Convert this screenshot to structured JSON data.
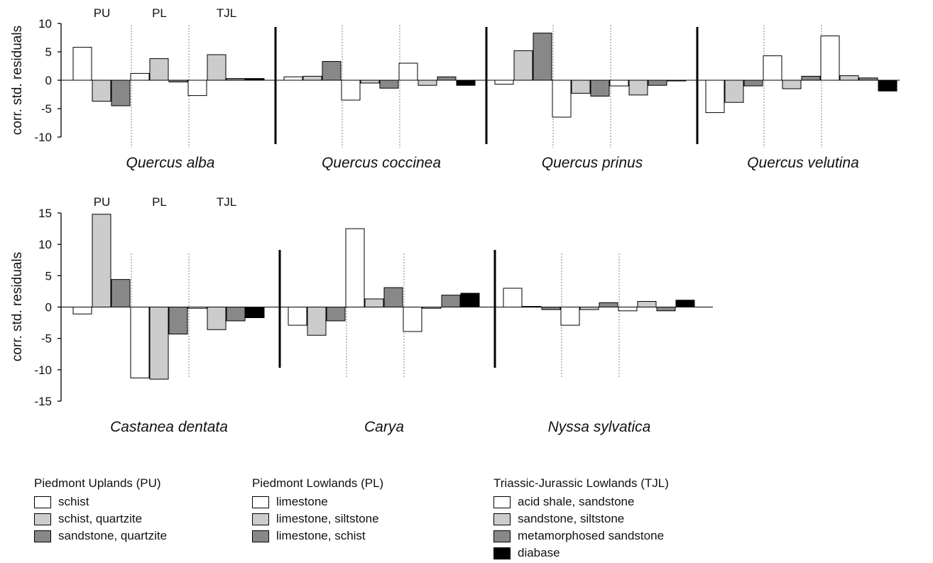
{
  "chart_data": {
    "type": "bar",
    "ylabel": "corr. std. residuals",
    "colors": {
      "white": "#ffffff",
      "light": "#cccccc",
      "mid": "#888888",
      "black": "#000000",
      "axis": "#000000"
    },
    "groups": [
      {
        "label": "PU",
        "bars": [
          {
            "name": "schist",
            "color": "white"
          },
          {
            "name": "schist, quartzite",
            "color": "light"
          },
          {
            "name": "sandstone, quartzite",
            "color": "mid"
          }
        ]
      },
      {
        "label": "PL",
        "bars": [
          {
            "name": "limestone",
            "color": "white"
          },
          {
            "name": "limestone, siltstone",
            "color": "light"
          },
          {
            "name": "limestone, schist",
            "color": "mid"
          }
        ]
      },
      {
        "label": "TJL",
        "bars": [
          {
            "name": "acid shale, sandstone",
            "color": "white"
          },
          {
            "name": "sandstone, siltstone",
            "color": "light"
          },
          {
            "name": "metamorphosed sandstone",
            "color": "mid"
          },
          {
            "name": "diabase",
            "color": "black"
          }
        ]
      }
    ],
    "panels": [
      {
        "yticks": [
          "10",
          "5",
          "0",
          "-5",
          "-10"
        ],
        "ylim": [
          -10,
          10
        ],
        "species": [
          {
            "name": "Quercus alba",
            "values": [
              5.8,
              -3.7,
              -4.5,
              1.2,
              3.8,
              -0.3,
              -2.7,
              4.5,
              0.3,
              0.3
            ]
          },
          {
            "name": "Quercus coccinea",
            "values": [
              0.6,
              0.7,
              3.3,
              -3.5,
              -0.5,
              -1.4,
              3.0,
              -0.9,
              0.6,
              -0.9
            ]
          },
          {
            "name": "Quercus prinus",
            "values": [
              -0.7,
              5.2,
              8.3,
              -6.5,
              -2.3,
              -2.8,
              -1.0,
              -2.6,
              -0.9,
              -0.1
            ]
          },
          {
            "name": "Quercus velutina",
            "values": [
              -5.7,
              -3.9,
              -1.0,
              4.3,
              -1.5,
              0.7,
              7.8,
              0.8,
              0.4,
              -1.9
            ]
          }
        ]
      },
      {
        "yticks": [
          "15",
          "10",
          "5",
          "0",
          "-5",
          "-10",
          "-15"
        ],
        "ylim": [
          -15,
          15
        ],
        "species": [
          {
            "name": "Castanea dentata",
            "values": [
              -1.1,
              14.8,
              4.4,
              -11.3,
              -11.5,
              -4.3,
              -0.2,
              -3.6,
              -2.2,
              -1.7
            ]
          },
          {
            "name": "Carya",
            "values": [
              -2.9,
              -4.5,
              -2.2,
              12.5,
              1.3,
              3.1,
              -3.9,
              -0.2,
              1.9,
              2.2
            ]
          },
          {
            "name": "Nyssa sylvatica",
            "values": [
              3.0,
              0.1,
              -0.4,
              -2.9,
              -0.4,
              0.7,
              -0.6,
              0.9,
              -0.6,
              1.1
            ]
          }
        ]
      }
    ]
  },
  "legend": [
    {
      "title": "Piedmont Uplands (PU)",
      "items": [
        {
          "label": "schist",
          "color": "#ffffff"
        },
        {
          "label": "schist, quartzite",
          "color": "#cccccc"
        },
        {
          "label": "sandstone, quartzite",
          "color": "#888888"
        }
      ]
    },
    {
      "title": "Piedmont Lowlands (PL)",
      "items": [
        {
          "label": "limestone",
          "color": "#ffffff"
        },
        {
          "label": "limestone, siltstone",
          "color": "#cccccc"
        },
        {
          "label": "limestone, schist",
          "color": "#888888"
        }
      ]
    },
    {
      "title": "Triassic-Jurassic Lowlands (TJL)",
      "items": [
        {
          "label": "acid shale, sandstone",
          "color": "#ffffff"
        },
        {
          "label": "sandstone, siltstone",
          "color": "#cccccc"
        },
        {
          "label": "metamorphosed sandstone",
          "color": "#888888"
        },
        {
          "label": "diabase",
          "color": "#000000"
        }
      ]
    }
  ]
}
